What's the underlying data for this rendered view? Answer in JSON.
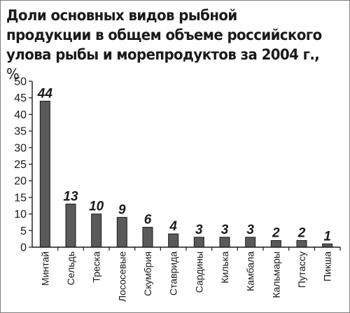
{
  "chart_data": {
    "type": "bar",
    "title_main": "Доли основных видов рыбной продукции в общем объеме российского улова рыбы и морепродуктов за 2004 г.,",
    "title_unit": "%",
    "categories": [
      "Минтай",
      "Сельдь",
      "Треска",
      "Лососевые",
      "Скумбрия",
      "Ставрида",
      "Сардины",
      "Килька",
      "Камбала",
      "Кальмары",
      "Путассу",
      "Пикша"
    ],
    "values": [
      44,
      13,
      10,
      9,
      6,
      4,
      3,
      3,
      3,
      2,
      2,
      1
    ],
    "ylim": [
      0,
      50
    ],
    "yticks": [
      0,
      5,
      10,
      15,
      20,
      25,
      30,
      35,
      40,
      45,
      50
    ],
    "grid": false,
    "legend": "none",
    "colors": {
      "bar_fill": "#5a5a5a",
      "bar_stroke": "#1a1a1a",
      "axis": "#1a1a1a",
      "text": "#1a1a1a",
      "frame": "#7f7f7f"
    }
  }
}
